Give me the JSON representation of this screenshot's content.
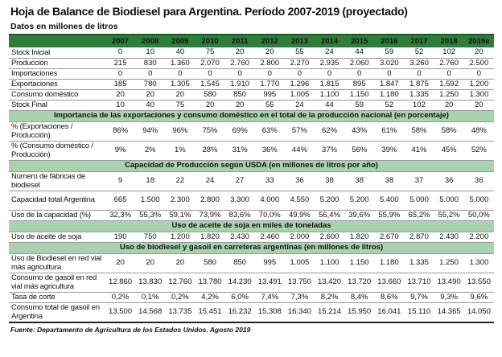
{
  "title": "Hoja de Balance de Biodiesel para Argentina. Período 2007-2019 (proyectado)",
  "subtitle": "Datos en millones de litros",
  "years": [
    "2007",
    "2008",
    "2009",
    "2010",
    "2011",
    "2012",
    "2013",
    "2014",
    "2015",
    "2016",
    "2017",
    "2018",
    "2019e"
  ],
  "sections": [
    {
      "band": null,
      "rows": [
        {
          "label": "Stock Inicial",
          "values": [
            "0",
            "10",
            "40",
            "75",
            "20",
            "20",
            "55",
            "24",
            "44",
            "59",
            "52",
            "102",
            "20"
          ]
        },
        {
          "label": "Producción",
          "values": [
            "215",
            "830",
            "1.360",
            "2.070",
            "2.760",
            "2.800",
            "2.270",
            "2.935",
            "2.060",
            "3.020",
            "3.260",
            "2.760",
            "2.500"
          ]
        },
        {
          "label": "Importaciones",
          "values": [
            "0",
            "0",
            "0",
            "0",
            "0",
            "0",
            "0",
            "0",
            "0",
            "0",
            "0",
            "0",
            "0"
          ]
        },
        {
          "label": "Exportaciones",
          "values": [
            "185",
            "780",
            "1.305",
            "1.545",
            "1.910",
            "1.770",
            "1.296",
            "1.815",
            "895",
            "1.847",
            "1.875",
            "1.592",
            "1.200"
          ]
        },
        {
          "label": "Consumo doméstico",
          "values": [
            "20",
            "20",
            "20",
            "580",
            "850",
            "995",
            "1.005",
            "1.100",
            "1.150",
            "1.180",
            "1.335",
            "1.250",
            "1.300"
          ]
        },
        {
          "label": "Stock Final",
          "values": [
            "10",
            "40",
            "75",
            "20",
            "20",
            "55",
            "24",
            "44",
            "59",
            "52",
            "102",
            "20",
            "20"
          ]
        }
      ]
    },
    {
      "band": "Importancia de las exportaciones y consumo doméstico en el total de la producción nacional (en porcentaje)",
      "rows": [
        {
          "label": "% (Exportaciones / Producción)",
          "values": [
            "86%",
            "94%",
            "96%",
            "75%",
            "69%",
            "63%",
            "57%",
            "62%",
            "43%",
            "61%",
            "58%",
            "58%",
            "48%"
          ]
        },
        {
          "label": "% (Consumo doméstico / Producción)",
          "values": [
            "9%",
            "2%",
            "1%",
            "28%",
            "31%",
            "36%",
            "44%",
            "37%",
            "56%",
            "39%",
            "41%",
            "45%",
            "52%"
          ]
        }
      ]
    },
    {
      "band": "Capacidad de Producción según USDA (en millones de litros por año)",
      "rows": [
        {
          "label": "Número de fábricas de biodiesel",
          "values": [
            "9",
            "18",
            "22",
            "24",
            "27",
            "33",
            "36",
            "38",
            "38",
            "38",
            "37",
            "36",
            "36"
          ]
        },
        {
          "label": "Capacidad total Argentina",
          "values": [
            "665",
            "1.500",
            "2.300",
            "2.800",
            "3.300",
            "4.000",
            "4.550",
            "5.200",
            "5.200",
            "5.400",
            "5.000",
            "5.000",
            "5.000"
          ]
        },
        {
          "label": "Uso de la capacidad (%)",
          "values": [
            "32,3%",
            "55,3%",
            "59,1%",
            "73,9%",
            "83,6%",
            "70,0%",
            "49,9%",
            "56,4%",
            "39,6%",
            "55,9%",
            "65,2%",
            "55,2%",
            "50,0%"
          ]
        }
      ]
    },
    {
      "band": "Uso de aceite de soja en miles de toneladas",
      "rows": [
        {
          "label": "Uso de aceite de soja",
          "values": [
            "190",
            "750",
            "1.200",
            "1.820",
            "2.430",
            "2.460",
            "2.000",
            "2.600",
            "1.820",
            "2.670",
            "2.870",
            "2.430",
            "2.200"
          ]
        }
      ]
    },
    {
      "band": "Uso de biodiesel y gasoil en carreteras argentinas (en millones de litros)",
      "rows": [
        {
          "label": "Uso de Biodiesel en red vial más agricultura",
          "values": [
            "20",
            "20",
            "20",
            "580",
            "850",
            "995",
            "1.005",
            "1.100",
            "1.150",
            "1.180",
            "1.335",
            "1.250",
            "1.300"
          ]
        },
        {
          "label": "Consumo de gasoil en red vial más agricultura",
          "values": [
            "12.860",
            "13.830",
            "12.760",
            "13.780",
            "14.230",
            "13.491",
            "13.750",
            "13.420",
            "13.720",
            "13.660",
            "13.710",
            "13.490",
            "13.550"
          ]
        },
        {
          "label": "Tasa de corte",
          "values": [
            "0,2%",
            "0,1%",
            "0,2%",
            "4,2%",
            "6,0%",
            "7,4%",
            "7,3%",
            "8,2%",
            "8,4%",
            "8,6%",
            "9,7%",
            "9,3%",
            "9,6%"
          ]
        },
        {
          "label": "Consumo total de gasoil en Argentina",
          "values": [
            "13.500",
            "14.568",
            "13.735",
            "15.451",
            "16.232",
            "15.308",
            "16.340",
            "15.214",
            "15.950",
            "16.041",
            "15.110",
            "14.365",
            "14.050"
          ]
        }
      ]
    }
  ],
  "source": "Fuente: Departamento de Agricultura de los Estados Unidos. Agosto 2019"
}
